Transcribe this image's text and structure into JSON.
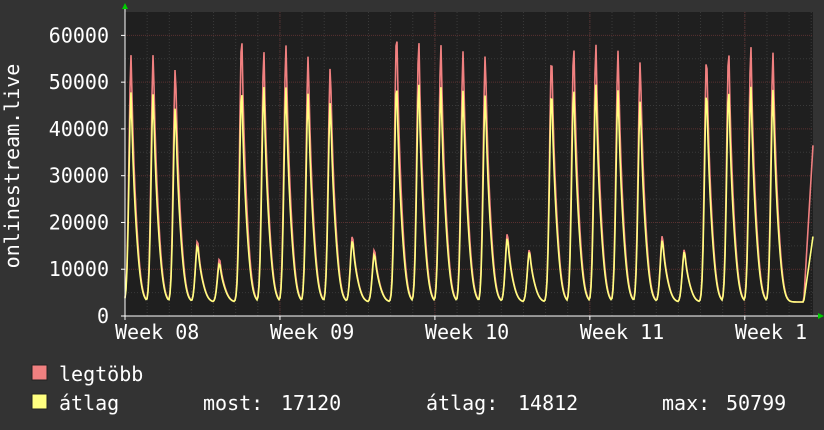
{
  "chart_data": {
    "type": "area",
    "ylabel": "onlinestream.live",
    "ylim": [
      0,
      65000
    ],
    "yticks": [
      0,
      10000,
      20000,
      30000,
      40000,
      50000,
      60000
    ],
    "ytick_labels": [
      "0",
      "10000",
      "20000",
      "30000",
      "40000",
      "50000",
      "60000"
    ],
    "xlim": [
      0,
      4.44
    ],
    "xticks": [
      0,
      1,
      2,
      3,
      4
    ],
    "xtick_labels": [
      "Week 08",
      "Week 09",
      "Week 10",
      "Week 11",
      "Week 1"
    ],
    "grid": true,
    "colors": {
      "background": "#333333",
      "plot_bg": "#1f1f1f",
      "grid_major": "#5a3030",
      "grid_minor": "#3a3a3a",
      "max_series": "#f08080",
      "avg_series": "#ffff80",
      "axis_arrow": "#00cc00"
    },
    "days": [
      {
        "x": 0.0,
        "max": 56000,
        "avg": 48000
      },
      {
        "x": 0.143,
        "max": 56500,
        "avg": 48000
      },
      {
        "x": 0.286,
        "max": 54000,
        "avg": 45500
      },
      {
        "x": 0.429,
        "max": 16500,
        "avg": 15500
      },
      {
        "x": 0.571,
        "max": 12500,
        "avg": 11500
      },
      {
        "x": 0.714,
        "max": 60500,
        "avg": 49000
      },
      {
        "x": 0.857,
        "max": 56500,
        "avg": 49000
      },
      {
        "x": 1.0,
        "max": 58000,
        "avg": 49000
      },
      {
        "x": 1.143,
        "max": 56000,
        "avg": 48000
      },
      {
        "x": 1.286,
        "max": 54000,
        "avg": 46500
      },
      {
        "x": 1.429,
        "max": 17500,
        "avg": 16500
      },
      {
        "x": 1.571,
        "max": 14500,
        "avg": 13500
      },
      {
        "x": 1.714,
        "max": 61500,
        "avg": 50500
      },
      {
        "x": 1.857,
        "max": 59000,
        "avg": 50000
      },
      {
        "x": 2.0,
        "max": 58000,
        "avg": 49000
      },
      {
        "x": 2.143,
        "max": 57000,
        "avg": 48500
      },
      {
        "x": 2.286,
        "max": 56500,
        "avg": 48000
      },
      {
        "x": 2.429,
        "max": 18000,
        "avg": 17000
      },
      {
        "x": 2.571,
        "max": 14500,
        "avg": 14000
      },
      {
        "x": 2.714,
        "max": 56500,
        "avg": 49000
      },
      {
        "x": 2.857,
        "max": 58000,
        "avg": 49000
      },
      {
        "x": 3.0,
        "max": 58000,
        "avg": 49500
      },
      {
        "x": 3.143,
        "max": 57000,
        "avg": 48500
      },
      {
        "x": 3.286,
        "max": 55000,
        "avg": 46500
      },
      {
        "x": 3.429,
        "max": 17500,
        "avg": 16500
      },
      {
        "x": 3.571,
        "max": 14500,
        "avg": 14000
      },
      {
        "x": 3.714,
        "max": 56500,
        "avg": 49000
      },
      {
        "x": 3.857,
        "max": 57500,
        "avg": 49000
      },
      {
        "x": 4.0,
        "max": 57500,
        "avg": 49000
      },
      {
        "x": 4.143,
        "max": 56500,
        "avg": 48500
      }
    ],
    "last": {
      "x": 4.44,
      "max": 36500,
      "avg": 17000
    },
    "baseline": 3000,
    "legend": {
      "position": "bottom-left",
      "items": [
        {
          "label": "legtöbb",
          "color": "#f08080"
        },
        {
          "label": "átlag",
          "color": "#ffff80"
        }
      ],
      "stats": [
        {
          "label": "most:",
          "value": "17120"
        },
        {
          "label": "átlag:",
          "value": "14812"
        },
        {
          "label": "max:",
          "value": "50799"
        }
      ]
    }
  }
}
